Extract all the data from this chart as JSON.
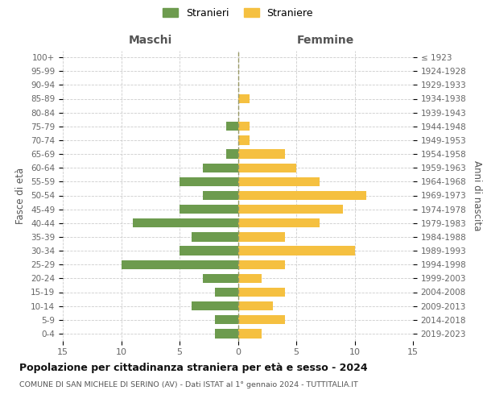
{
  "age_groups": [
    "0-4",
    "5-9",
    "10-14",
    "15-19",
    "20-24",
    "25-29",
    "30-34",
    "35-39",
    "40-44",
    "45-49",
    "50-54",
    "55-59",
    "60-64",
    "65-69",
    "70-74",
    "75-79",
    "80-84",
    "85-89",
    "90-94",
    "95-99",
    "100+"
  ],
  "birth_years": [
    "2019-2023",
    "2014-2018",
    "2009-2013",
    "2004-2008",
    "1999-2003",
    "1994-1998",
    "1989-1993",
    "1984-1988",
    "1979-1983",
    "1974-1978",
    "1969-1973",
    "1964-1968",
    "1959-1963",
    "1954-1958",
    "1949-1953",
    "1944-1948",
    "1939-1943",
    "1934-1938",
    "1929-1933",
    "1924-1928",
    "≤ 1923"
  ],
  "males": [
    2,
    2,
    4,
    2,
    3,
    10,
    5,
    4,
    9,
    5,
    3,
    5,
    3,
    1,
    0,
    1,
    0,
    0,
    0,
    0,
    0
  ],
  "females": [
    2,
    4,
    3,
    4,
    2,
    4,
    10,
    4,
    7,
    9,
    11,
    7,
    5,
    4,
    1,
    1,
    0,
    1,
    0,
    0,
    0
  ],
  "male_color": "#6d9b4e",
  "female_color": "#f5c040",
  "background_color": "#ffffff",
  "grid_color": "#cccccc",
  "title": "Popolazione per cittadinanza straniera per età e sesso - 2024",
  "subtitle": "COMUNE DI SAN MICHELE DI SERINO (AV) - Dati ISTAT al 1° gennaio 2024 - TUTTITALIA.IT",
  "xlabel_left": "Maschi",
  "xlabel_right": "Femmine",
  "ylabel_left": "Fasce di età",
  "ylabel_right": "Anni di nascita",
  "legend_male": "Stranieri",
  "legend_female": "Straniere",
  "xlim": 15,
  "dpi": 100,
  "figsize": [
    6.0,
    5.0
  ]
}
